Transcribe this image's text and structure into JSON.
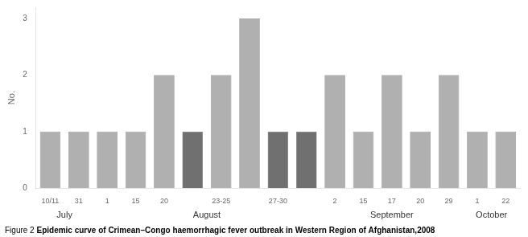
{
  "chart_data": {
    "type": "bar",
    "title": "Figure 2",
    "subtitle": "Epidemic curve of Crimean–Congo haemorrhagic fever outbreak in Western Region of Afghanistan,2008",
    "ylabel": "No.",
    "categories": [
      "10/11",
      "31",
      "1",
      "15",
      "20",
      null,
      "23-25",
      null,
      "27-30",
      null,
      "2",
      "15",
      "17",
      "20",
      "29",
      "1",
      "22"
    ],
    "category_months": [
      "July",
      "July",
      "August",
      "August",
      "August",
      "August",
      "August",
      "August",
      "August",
      "August",
      "September",
      "September",
      "September",
      "September",
      "September",
      "October",
      "October"
    ],
    "values": [
      1,
      1,
      1,
      1,
      2,
      1,
      2,
      3,
      1,
      1,
      2,
      1,
      2,
      1,
      2,
      1,
      1
    ],
    "colors": [
      "#b0b0b0",
      "#b0b0b0",
      "#b0b0b0",
      "#b0b0b0",
      "#b0b0b0",
      "#707070",
      "#b0b0b0",
      "#b0b0b0",
      "#707070",
      "#707070",
      "#b0b0b0",
      "#b0b0b0",
      "#b0b0b0",
      "#b0b0b0",
      "#b0b0b0",
      "#b0b0b0",
      "#b0b0b0"
    ],
    "ylim": [
      0,
      3.2
    ],
    "yticks": [
      0,
      1,
      2,
      3
    ],
    "grid": false
  }
}
